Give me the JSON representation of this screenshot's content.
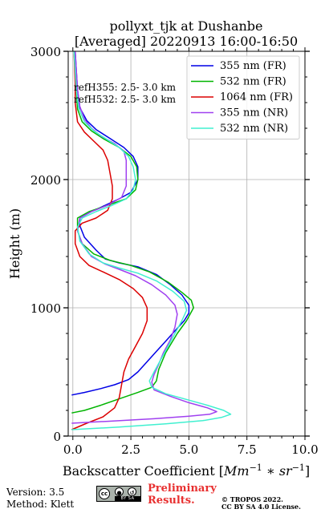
{
  "chart_data": {
    "type": "line",
    "title": "pollyxt_tjk at Dushanbe",
    "subtitle": "[Averaged] 20220913 16:00-16:50",
    "xlabel_text": "Backscatter Coefficient [",
    "xlabel_unit": "Mm",
    "xlabel_unit_sup1": "−1",
    "xlabel_mid": " ∗ sr",
    "xlabel_unit_sup2": "−1",
    "xlabel_end": "]",
    "ylabel": "Height (m)",
    "xlim": [
      -0.2,
      10.0
    ],
    "ylim": [
      0,
      3000
    ],
    "xticks": [
      0,
      2.5,
      5,
      7.5,
      10
    ],
    "xtick_labels": [
      "0.0",
      "2.5",
      "5.0",
      "7.5",
      "10.0"
    ],
    "yticks": [
      0,
      1000,
      2000,
      3000
    ],
    "ytick_labels": [
      "0",
      "1000",
      "2000",
      "3000"
    ],
    "grid": true,
    "legend_position": "top-right",
    "annotations": [
      "refH355:  2.5- 3.0 km",
      "refH532:  2.5- 3.0 km"
    ],
    "series": [
      {
        "name": "355 nm (FR)",
        "color": "#0000e6",
        "points": [
          [
            -0.05,
            320
          ],
          [
            0.5,
            340
          ],
          [
            1.2,
            370
          ],
          [
            1.8,
            400
          ],
          [
            2.4,
            440
          ],
          [
            2.8,
            500
          ],
          [
            3.2,
            580
          ],
          [
            3.6,
            660
          ],
          [
            4.0,
            740
          ],
          [
            4.4,
            820
          ],
          [
            4.8,
            900
          ],
          [
            5.0,
            960
          ],
          [
            5.0,
            1020
          ],
          [
            4.7,
            1100
          ],
          [
            4.2,
            1180
          ],
          [
            3.6,
            1260
          ],
          [
            2.8,
            1320
          ],
          [
            2.0,
            1350
          ],
          [
            1.4,
            1380
          ],
          [
            1.0,
            1450
          ],
          [
            0.5,
            1550
          ],
          [
            0.3,
            1640
          ],
          [
            0.3,
            1700
          ],
          [
            0.8,
            1750
          ],
          [
            1.4,
            1800
          ],
          [
            2.0,
            1850
          ],
          [
            2.5,
            1900
          ],
          [
            2.8,
            2000
          ],
          [
            2.8,
            2100
          ],
          [
            2.6,
            2180
          ],
          [
            2.2,
            2250
          ],
          [
            1.6,
            2320
          ],
          [
            1.0,
            2390
          ],
          [
            0.6,
            2460
          ],
          [
            0.3,
            2560
          ],
          [
            0.2,
            2700
          ],
          [
            0.15,
            2850
          ],
          [
            0.1,
            3000
          ]
        ]
      },
      {
        "name": "532 nm (FR)",
        "color": "#00b400",
        "points": [
          [
            -0.05,
            180
          ],
          [
            0.5,
            200
          ],
          [
            1.2,
            240
          ],
          [
            2.0,
            290
          ],
          [
            2.8,
            340
          ],
          [
            3.4,
            380
          ],
          [
            3.6,
            430
          ],
          [
            3.7,
            520
          ],
          [
            4.0,
            650
          ],
          [
            4.5,
            800
          ],
          [
            4.9,
            900
          ],
          [
            5.2,
            1000
          ],
          [
            5.1,
            1060
          ],
          [
            4.7,
            1120
          ],
          [
            4.1,
            1200
          ],
          [
            3.3,
            1280
          ],
          [
            2.5,
            1330
          ],
          [
            1.6,
            1370
          ],
          [
            0.9,
            1420
          ],
          [
            0.4,
            1500
          ],
          [
            0.2,
            1600
          ],
          [
            0.2,
            1700
          ],
          [
            0.7,
            1750
          ],
          [
            1.5,
            1800
          ],
          [
            2.3,
            1850
          ],
          [
            2.7,
            1920
          ],
          [
            2.8,
            2000
          ],
          [
            2.75,
            2100
          ],
          [
            2.5,
            2180
          ],
          [
            2.0,
            2250
          ],
          [
            1.3,
            2320
          ],
          [
            0.8,
            2380
          ],
          [
            0.4,
            2450
          ],
          [
            0.2,
            2550
          ],
          [
            0.15,
            2700
          ],
          [
            0.1,
            2850
          ],
          [
            0.05,
            3000
          ]
        ]
      },
      {
        "name": "1064 nm (FR)",
        "color": "#dc0000",
        "points": [
          [
            -0.05,
            50
          ],
          [
            0.6,
            100
          ],
          [
            1.3,
            150
          ],
          [
            1.8,
            220
          ],
          [
            2.0,
            300
          ],
          [
            2.1,
            400
          ],
          [
            2.2,
            500
          ],
          [
            2.4,
            600
          ],
          [
            2.7,
            700
          ],
          [
            3.0,
            800
          ],
          [
            3.2,
            900
          ],
          [
            3.2,
            1000
          ],
          [
            3.0,
            1080
          ],
          [
            2.6,
            1150
          ],
          [
            2.0,
            1220
          ],
          [
            1.3,
            1280
          ],
          [
            0.7,
            1330
          ],
          [
            0.3,
            1400
          ],
          [
            0.1,
            1500
          ],
          [
            0.1,
            1600
          ],
          [
            0.4,
            1660
          ],
          [
            1.0,
            1700
          ],
          [
            1.5,
            1760
          ],
          [
            1.7,
            1850
          ],
          [
            1.7,
            1950
          ],
          [
            1.6,
            2050
          ],
          [
            1.5,
            2150
          ],
          [
            1.3,
            2230
          ],
          [
            0.9,
            2300
          ],
          [
            0.5,
            2370
          ],
          [
            0.2,
            2450
          ],
          [
            0.1,
            2600
          ],
          [
            0.1,
            2750
          ],
          [
            0.05,
            3000
          ]
        ]
      },
      {
        "name": "355 nm (NR)",
        "color": "#a040f0",
        "points": [
          [
            -0.05,
            100
          ],
          [
            1.5,
            115
          ],
          [
            3.5,
            135
          ],
          [
            5.0,
            155
          ],
          [
            5.9,
            170
          ],
          [
            6.2,
            190
          ],
          [
            5.8,
            220
          ],
          [
            5.0,
            260
          ],
          [
            4.2,
            310
          ],
          [
            3.5,
            360
          ],
          [
            3.4,
            420
          ],
          [
            3.5,
            480
          ],
          [
            3.7,
            560
          ],
          [
            3.9,
            650
          ],
          [
            4.2,
            750
          ],
          [
            4.4,
            850
          ],
          [
            4.5,
            950
          ],
          [
            4.4,
            1020
          ],
          [
            4.0,
            1100
          ],
          [
            3.4,
            1180
          ],
          [
            2.7,
            1250
          ],
          [
            2.0,
            1300
          ],
          [
            1.4,
            1340
          ],
          [
            0.8,
            1400
          ],
          [
            0.4,
            1500
          ],
          [
            0.2,
            1600
          ],
          [
            0.3,
            1700
          ],
          [
            0.8,
            1750
          ],
          [
            1.5,
            1800
          ],
          [
            2.1,
            1860
          ],
          [
            2.3,
            1950
          ],
          [
            2.3,
            2050
          ],
          [
            2.3,
            2150
          ],
          [
            2.2,
            2220
          ],
          [
            1.8,
            2280
          ],
          [
            1.2,
            2340
          ],
          [
            0.8,
            2400
          ],
          [
            0.5,
            2470
          ],
          [
            0.3,
            2570
          ],
          [
            0.2,
            2700
          ],
          [
            0.15,
            2850
          ],
          [
            0.1,
            3000
          ]
        ]
      },
      {
        "name": "532 nm (NR)",
        "color": "#40f0d0",
        "points": [
          [
            -0.05,
            50
          ],
          [
            2.0,
            70
          ],
          [
            4.0,
            95
          ],
          [
            5.6,
            120
          ],
          [
            6.4,
            145
          ],
          [
            6.8,
            170
          ],
          [
            6.5,
            200
          ],
          [
            5.8,
            240
          ],
          [
            5.0,
            280
          ],
          [
            4.0,
            330
          ],
          [
            3.4,
            380
          ],
          [
            3.3,
            430
          ],
          [
            3.5,
            500
          ],
          [
            3.8,
            600
          ],
          [
            4.1,
            700
          ],
          [
            4.4,
            800
          ],
          [
            4.7,
            900
          ],
          [
            4.9,
            980
          ],
          [
            4.8,
            1050
          ],
          [
            4.3,
            1130
          ],
          [
            3.6,
            1210
          ],
          [
            2.8,
            1270
          ],
          [
            2.0,
            1310
          ],
          [
            1.3,
            1350
          ],
          [
            0.7,
            1420
          ],
          [
            0.3,
            1520
          ],
          [
            0.2,
            1630
          ],
          [
            0.4,
            1700
          ],
          [
            1.0,
            1750
          ],
          [
            1.7,
            1800
          ],
          [
            2.3,
            1850
          ],
          [
            2.6,
            1920
          ],
          [
            2.7,
            2000
          ],
          [
            2.6,
            2100
          ],
          [
            2.4,
            2180
          ],
          [
            2.0,
            2250
          ],
          [
            1.4,
            2320
          ],
          [
            0.9,
            2380
          ],
          [
            0.5,
            2450
          ],
          [
            0.25,
            2560
          ],
          [
            0.15,
            2700
          ],
          [
            0.1,
            2850
          ],
          [
            0.05,
            3000
          ]
        ]
      }
    ]
  },
  "footer": {
    "version": "Version: 3.5",
    "method": "Method: Klett",
    "preliminary_line1": "Preliminary",
    "preliminary_line2": "Results.",
    "copyright_line1": "© TROPOS 2022.",
    "copyright_line2": "CC BY SA 4.0 License.",
    "license_badge_cc": "cc",
    "license_badge_strip": "BY  SA",
    "preliminary_color": "#e83030"
  }
}
